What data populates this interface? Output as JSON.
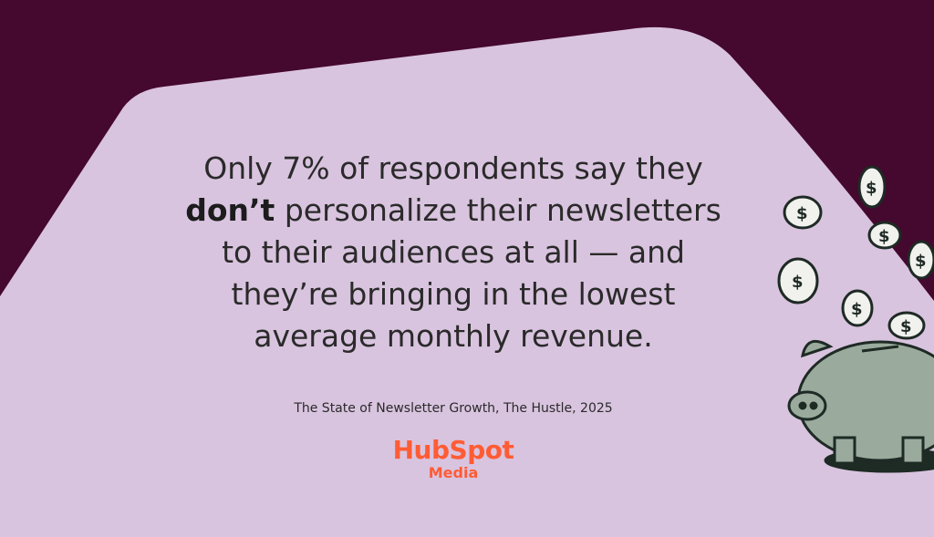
{
  "quote": {
    "lines": [
      "Only 7% of respondents say they",
      "personalize their newsletters",
      "to their audiences at all — and",
      "they’re bringing in the lowest",
      "average monthly revenue."
    ],
    "emphasis": "don’t"
  },
  "source": "The State of Newsletter Growth, The Hustle, 2025",
  "logo": {
    "brand": "HubSpot",
    "sub": "Media"
  }
}
